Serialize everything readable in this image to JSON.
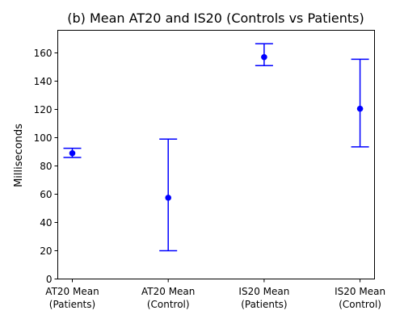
{
  "chart_data": {
    "type": "scatter",
    "title": "(b) Mean AT20 and IS20 (Controls vs Patients)",
    "xlabel": "",
    "ylabel": "Milliseconds",
    "ylim": [
      0,
      176
    ],
    "yticks": [
      0,
      20,
      40,
      60,
      80,
      100,
      120,
      140,
      160
    ],
    "grid": false,
    "categories": [
      [
        "AT20 Mean",
        "(Patients)"
      ],
      [
        "AT20 Mean",
        "(Control)"
      ],
      [
        "IS20 Mean",
        "(Patients)"
      ],
      [
        "IS20 Mean",
        "(Control)"
      ]
    ],
    "points": [
      {
        "mean": 89,
        "lower": 86,
        "upper": 92.5
      },
      {
        "mean": 57.5,
        "lower": 20,
        "upper": 99
      },
      {
        "mean": 157,
        "lower": 151,
        "upper": 166.5
      },
      {
        "mean": 120.5,
        "lower": 93.5,
        "upper": 155.5
      }
    ],
    "color": "#0000ff"
  }
}
